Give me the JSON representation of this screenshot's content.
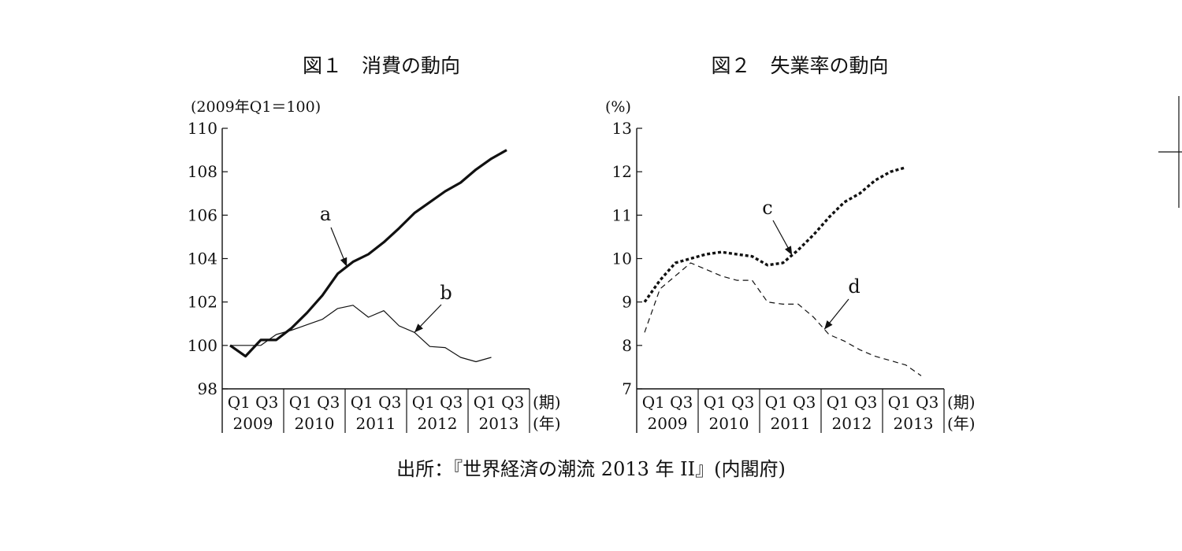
{
  "source": "出所：『世界経済の潮流 2013 年 II』(内閣府)",
  "chart_data": [
    {
      "type": "line",
      "title": "図１　消費の動向",
      "unit_label": "(2009年Q1＝100)",
      "ylim": [
        98,
        110
      ],
      "yticks": [
        98,
        100,
        102,
        104,
        106,
        108,
        110
      ],
      "x_tick_labels": [
        "Q1 Q3",
        "Q1 Q3",
        "Q1 Q3",
        "Q1 Q3",
        "Q1 Q3"
      ],
      "x_years": [
        "2009",
        "2010",
        "2011",
        "2012",
        "2013"
      ],
      "x_period_label": "(期)",
      "x_year_label": "(年)",
      "series": [
        {
          "name": "a",
          "style": "solid-thick",
          "x": [
            2009.0,
            2009.25,
            2009.5,
            2009.75,
            2010.0,
            2010.25,
            2010.5,
            2010.75,
            2011.0,
            2011.25,
            2011.5,
            2011.75,
            2012.0,
            2012.25,
            2012.5,
            2012.75,
            2013.0,
            2013.25,
            2013.5,
            2013.75
          ],
          "values": [
            100.0,
            99.5,
            100.25,
            100.25,
            100.8,
            101.5,
            102.3,
            103.3,
            103.85,
            104.2,
            104.75,
            105.4,
            106.1,
            106.6,
            107.1,
            107.5,
            108.1,
            108.6,
            109.0,
            null
          ]
        },
        {
          "name": "b",
          "style": "solid-thin",
          "x": [
            2009.0,
            2009.25,
            2009.5,
            2009.75,
            2010.0,
            2010.25,
            2010.5,
            2010.75,
            2011.0,
            2011.25,
            2011.5,
            2011.75,
            2012.0,
            2012.25,
            2012.5,
            2012.75,
            2013.0,
            2013.25,
            2013.5
          ],
          "values": [
            100.0,
            100.0,
            100.0,
            100.5,
            100.7,
            100.95,
            101.2,
            101.7,
            101.85,
            101.3,
            101.6,
            100.9,
            100.6,
            99.95,
            99.9,
            99.45,
            99.25,
            99.45,
            null
          ]
        }
      ]
    },
    {
      "type": "line",
      "title": "図２　失業率の動向",
      "unit_label": "(%)",
      "ylim": [
        7,
        13
      ],
      "yticks": [
        7,
        8,
        9,
        10,
        11,
        12,
        13
      ],
      "x_tick_labels": [
        "Q1 Q3",
        "Q1 Q3",
        "Q1 Q3",
        "Q1 Q3",
        "Q1 Q3"
      ],
      "x_years": [
        "2009",
        "2010",
        "2011",
        "2012",
        "2013"
      ],
      "x_period_label": "(期)",
      "x_year_label": "(年)",
      "series": [
        {
          "name": "c",
          "style": "dotted-thick",
          "x": [
            2009.0,
            2009.25,
            2009.5,
            2009.75,
            2010.0,
            2010.25,
            2010.5,
            2010.75,
            2011.0,
            2011.25,
            2011.5,
            2011.75,
            2012.0,
            2012.25,
            2012.5,
            2012.75,
            2013.0,
            2013.25,
            2013.5
          ],
          "values": [
            9.0,
            9.5,
            9.9,
            10.0,
            10.1,
            10.15,
            10.1,
            10.05,
            9.85,
            9.9,
            10.2,
            10.55,
            10.95,
            11.3,
            11.5,
            11.8,
            12.0,
            12.1,
            null
          ]
        },
        {
          "name": "d",
          "style": "dashed-thin",
          "x": [
            2009.0,
            2009.25,
            2009.5,
            2009.75,
            2010.0,
            2010.25,
            2010.5,
            2010.75,
            2011.0,
            2011.25,
            2011.5,
            2011.75,
            2012.0,
            2012.25,
            2012.5,
            2012.75,
            2013.0,
            2013.25,
            2013.5
          ],
          "values": [
            8.3,
            9.3,
            9.6,
            9.9,
            9.75,
            9.6,
            9.5,
            9.5,
            9.0,
            8.95,
            8.95,
            8.65,
            8.25,
            8.1,
            7.9,
            7.75,
            7.65,
            7.55,
            7.3
          ]
        }
      ]
    }
  ]
}
